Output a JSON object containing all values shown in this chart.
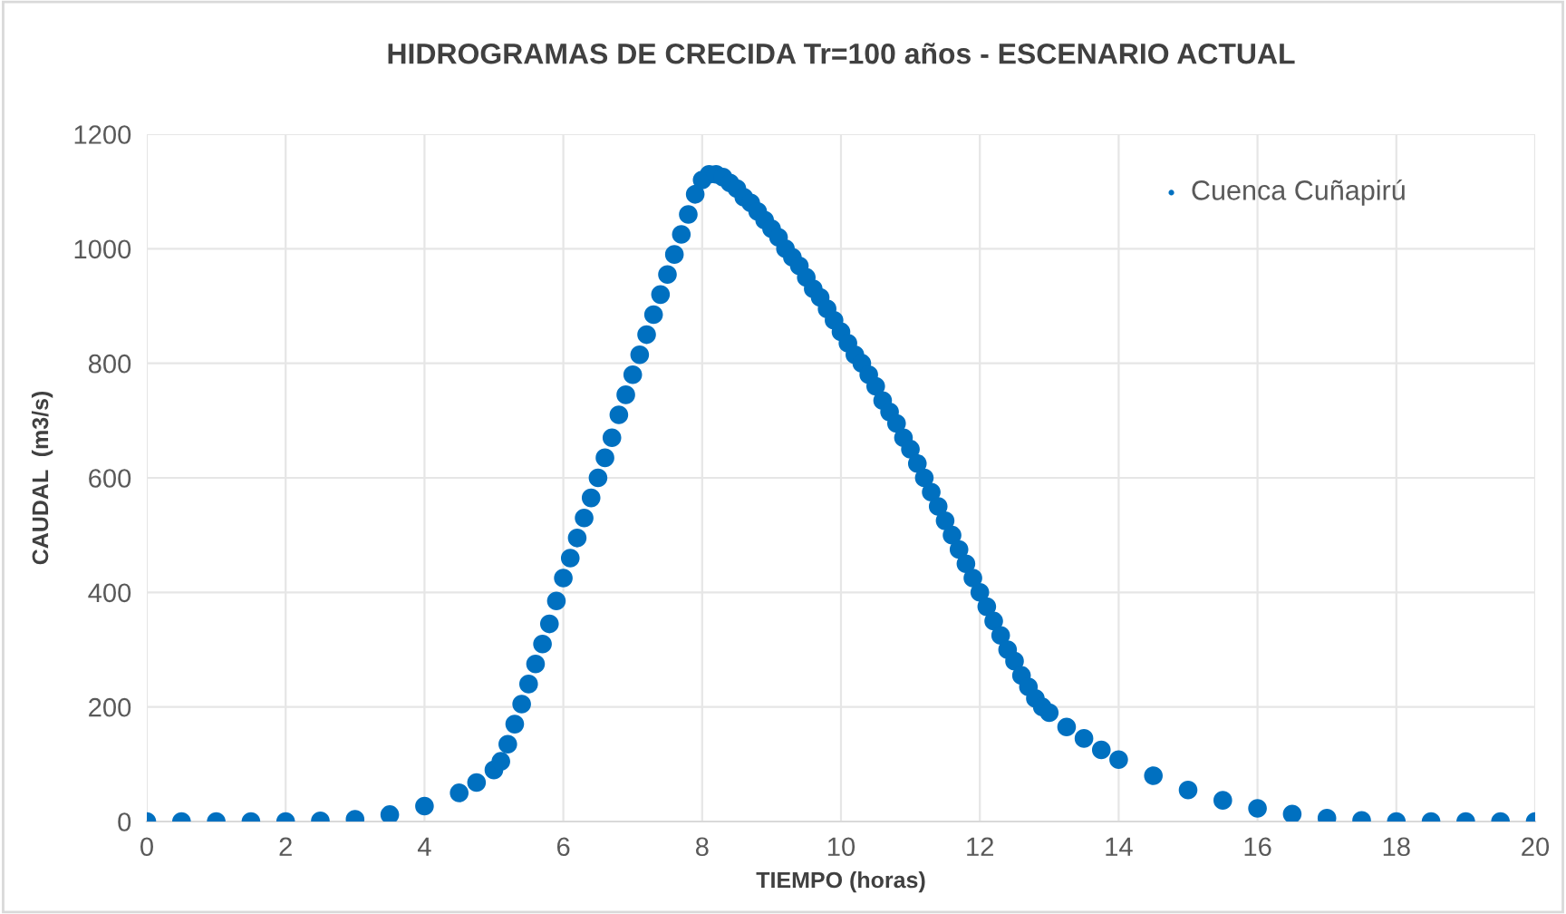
{
  "chart_data": {
    "type": "scatter",
    "title": "HIDROGRAMAS DE CRECIDA Tr=100 años - ESCENARIO ACTUAL",
    "xlabel": "TIEMPO (horas)",
    "ylabel": "CAUDAL  (m3/s)",
    "xlim": [
      0,
      20
    ],
    "xticks": [
      0,
      2,
      4,
      6,
      8,
      10,
      12,
      14,
      16,
      18,
      20
    ],
    "ylim": [
      0,
      1200
    ],
    "yticks": [
      0,
      200,
      400,
      600,
      800,
      1000,
      1200
    ],
    "grid": true,
    "legend": "top right",
    "marker": "circle",
    "series": [
      {
        "name": "Cuenca Cuñapirú",
        "color": "#0070c0",
        "x": [
          0,
          0.5,
          1,
          1.5,
          2,
          2.5,
          3,
          3.5,
          4,
          4.5,
          4.75,
          5.0,
          5.1,
          5.2,
          5.3,
          5.4,
          5.5,
          5.6,
          5.7,
          5.8,
          5.9,
          6.0,
          6.1,
          6.2,
          6.3,
          6.4,
          6.5,
          6.6,
          6.7,
          6.8,
          6.9,
          7.0,
          7.1,
          7.2,
          7.3,
          7.4,
          7.5,
          7.6,
          7.7,
          7.8,
          7.9,
          8.0,
          8.1,
          8.2,
          8.3,
          8.4,
          8.5,
          8.6,
          8.7,
          8.8,
          8.9,
          9.0,
          9.1,
          9.2,
          9.3,
          9.4,
          9.5,
          9.6,
          9.7,
          9.8,
          9.9,
          10.0,
          10.1,
          10.2,
          10.3,
          10.4,
          10.5,
          10.6,
          10.7,
          10.8,
          10.9,
          11.0,
          11.1,
          11.2,
          11.3,
          11.4,
          11.5,
          11.6,
          11.7,
          11.8,
          11.9,
          12.0,
          12.1,
          12.2,
          12.3,
          12.4,
          12.5,
          12.6,
          12.7,
          12.8,
          12.9,
          13.0,
          13.25,
          13.5,
          13.75,
          14,
          14.5,
          15,
          15.5,
          16,
          16.5,
          17,
          17.5,
          18,
          18.5,
          19,
          19.5,
          20
        ],
        "values": [
          0,
          0,
          0,
          0,
          0,
          1,
          4,
          12,
          27,
          50,
          68,
          90,
          105,
          135,
          170,
          205,
          240,
          275,
          310,
          345,
          385,
          425,
          460,
          495,
          530,
          565,
          600,
          635,
          670,
          710,
          745,
          780,
          815,
          850,
          885,
          920,
          955,
          990,
          1025,
          1060,
          1095,
          1120,
          1130,
          1130,
          1125,
          1115,
          1105,
          1090,
          1080,
          1065,
          1050,
          1035,
          1020,
          1000,
          985,
          970,
          950,
          930,
          915,
          895,
          875,
          855,
          835,
          815,
          800,
          780,
          760,
          735,
          715,
          695,
          670,
          650,
          625,
          600,
          575,
          550,
          525,
          500,
          475,
          450,
          425,
          400,
          375,
          350,
          325,
          300,
          280,
          255,
          235,
          215,
          200,
          190,
          165,
          145,
          125,
          108,
          80,
          55,
          37,
          23,
          13,
          6,
          2,
          0,
          0,
          0,
          0,
          0
        ]
      }
    ]
  }
}
